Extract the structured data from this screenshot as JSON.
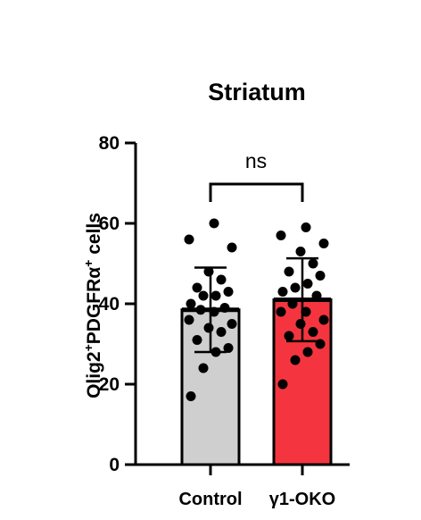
{
  "chart_data": {
    "type": "bar",
    "title": "Striatum",
    "ylabel": {
      "parts": [
        {
          "text": "Olig2",
          "sup": false
        },
        {
          "text": "+",
          "sup": true
        },
        {
          "text": "PDGFRα",
          "sup": false
        },
        {
          "text": "+",
          "sup": true
        },
        {
          "text": " cells",
          "sup": false
        }
      ]
    },
    "xlabel": "",
    "ylim": [
      0,
      80
    ],
    "yticks": [
      "0",
      "20",
      "40",
      "60",
      "80"
    ],
    "ytick_values": [
      0,
      20,
      40,
      60,
      80
    ],
    "categories": [
      "Control",
      "γ1-OKO"
    ],
    "series": [
      {
        "values": [
          38.5,
          41
        ],
        "error": [
          10.5,
          10.3
        ],
        "colors": [
          "#cfcfcf",
          "#f4353f"
        ]
      }
    ],
    "points": [
      [
        17,
        24,
        28,
        29,
        31,
        33,
        34,
        35,
        36,
        38,
        38.5,
        39,
        40,
        42,
        42,
        43,
        44,
        46,
        48,
        54,
        56,
        60
      ],
      [
        20,
        26,
        28,
        30,
        32,
        33,
        35,
        36,
        38,
        38,
        40,
        42,
        43,
        44,
        45,
        47,
        48,
        50,
        53,
        55,
        57,
        59
      ]
    ],
    "significance": {
      "label": "ns",
      "between": [
        0,
        1
      ]
    },
    "grid": false,
    "legend": "none"
  }
}
